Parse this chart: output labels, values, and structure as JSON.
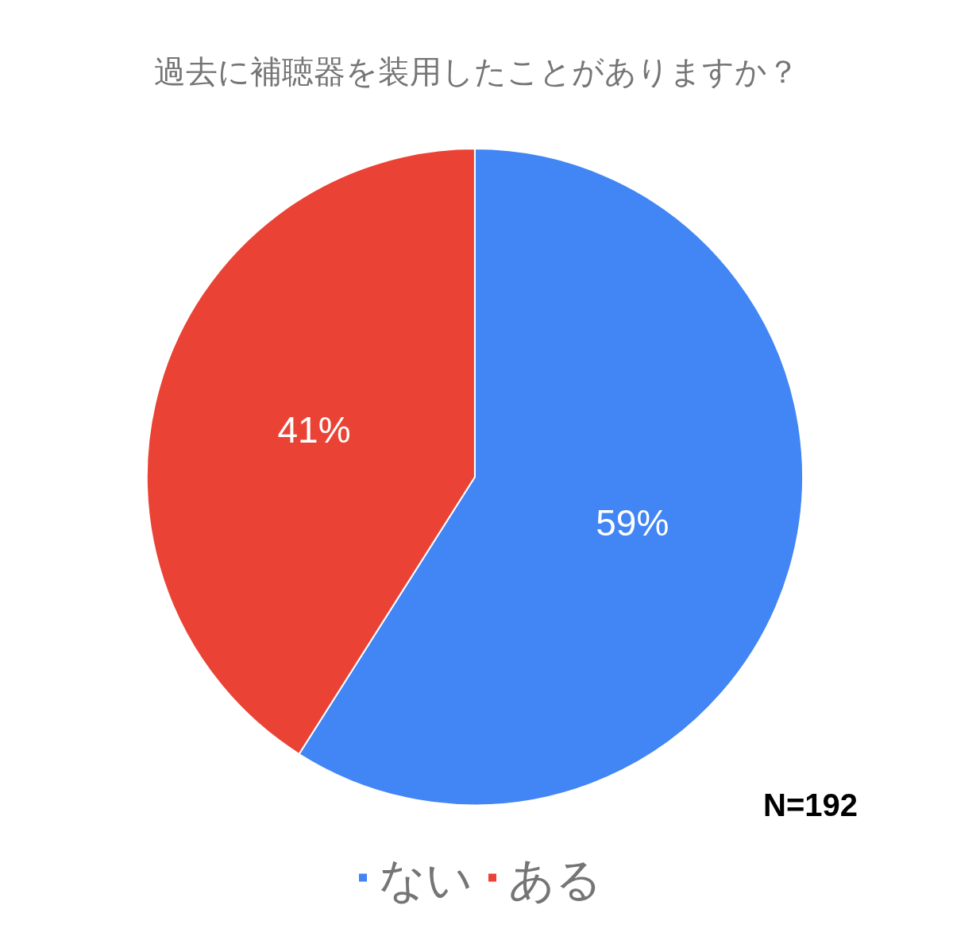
{
  "chart_data": {
    "type": "pie",
    "title": "過去に補聴器を装用したことがありますか？",
    "categories": [
      "ない",
      "ある"
    ],
    "values": [
      59,
      41
    ],
    "value_labels": [
      "59%",
      "41%"
    ],
    "colors": [
      "#4285f4",
      "#ea4335"
    ],
    "legend": "bottom",
    "annotations": [
      "N=192"
    ]
  }
}
